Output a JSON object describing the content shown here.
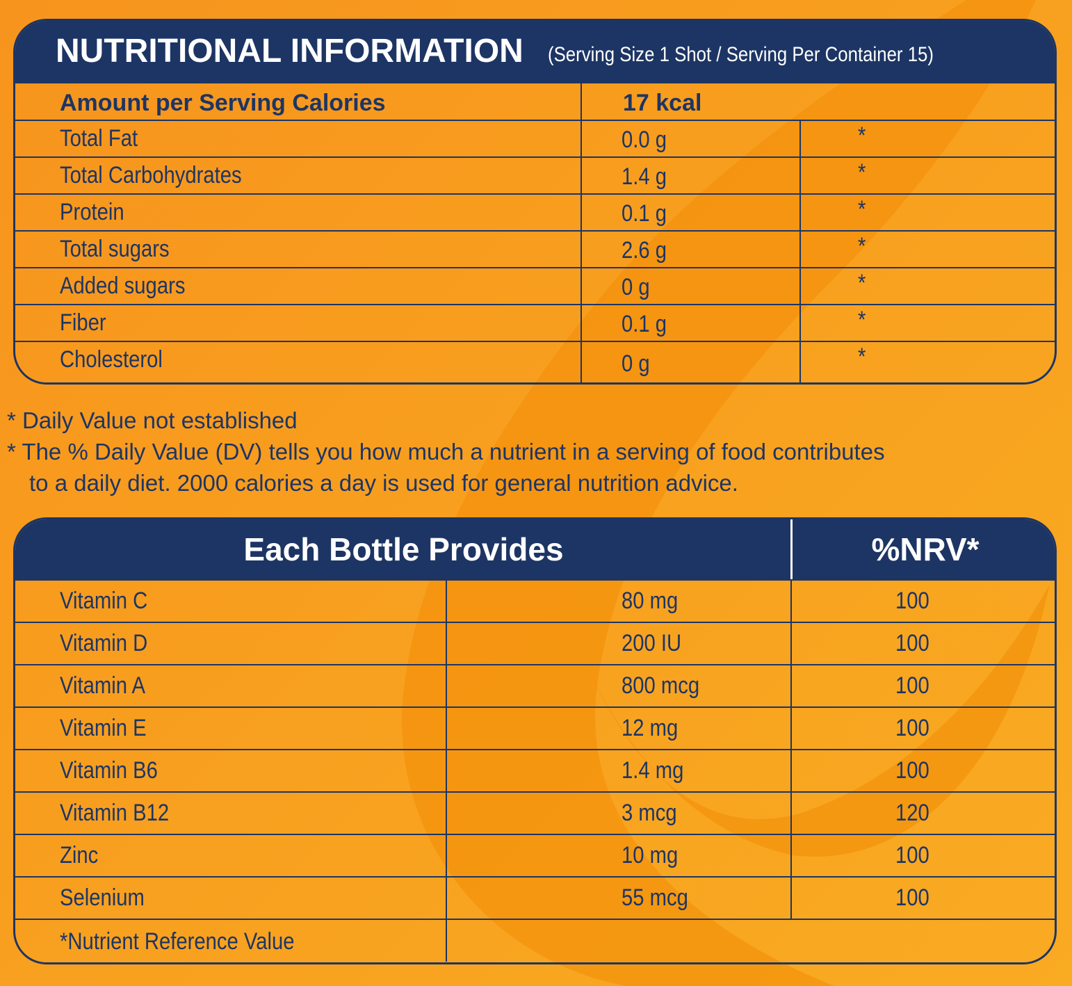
{
  "nutrition": {
    "title": "NUTRITIONAL INFORMATION",
    "serving_info": "(Serving Size 1 Shot / Serving Per Container 15)",
    "calories_label": "Amount per Serving Calories",
    "calories_value": "17 kcal",
    "rows": [
      {
        "name": "Total Fat",
        "amount": "0.0 g",
        "dv": "*"
      },
      {
        "name": "Total Carbohydrates",
        "amount": "1.4 g",
        "dv": "*"
      },
      {
        "name": "Protein",
        "amount": "0.1 g",
        "dv": "*"
      },
      {
        "name": "Total sugars",
        "amount": "2.6 g",
        "dv": "*"
      },
      {
        "name": "Added sugars",
        "amount": "0 g",
        "dv": "*"
      },
      {
        "name": "Fiber",
        "amount": "0.1 g",
        "dv": "*"
      },
      {
        "name": "Cholesterol",
        "amount": "0 g",
        "dv": "*"
      }
    ]
  },
  "notes": {
    "line1": "* Daily Value not established",
    "line2": "* The % Daily Value (DV) tells you how much a nutrient in a serving of food contributes",
    "line3": "to a daily diet. 2000 calories a day is used for general nutrition advice."
  },
  "vitamins": {
    "title": "Each Bottle Provides",
    "nrv_header": "%NRV*",
    "rows": [
      {
        "name": "Vitamin C",
        "amount": "80 mg",
        "nrv": "100"
      },
      {
        "name": "Vitamin D",
        "amount": "200 IU",
        "nrv": "100"
      },
      {
        "name": "Vitamin A",
        "amount": "800 mcg",
        "nrv": "100"
      },
      {
        "name": "Vitamin E",
        "amount": "12 mg",
        "nrv": "100"
      },
      {
        "name": "Vitamin B6",
        "amount": "1.4 mg",
        "nrv": "100"
      },
      {
        "name": "Vitamin B12",
        "amount": "3 mcg",
        "nrv": "120"
      },
      {
        "name": "Zinc",
        "amount": "10 mg",
        "nrv": "100"
      },
      {
        "name": "Selenium",
        "amount": "55 mcg",
        "nrv": "100"
      }
    ],
    "footnote": "*Nutrient Reference Value"
  },
  "colors": {
    "navy": "#1d3564",
    "orange": "#f7941d",
    "watermark": "#f08a00"
  }
}
